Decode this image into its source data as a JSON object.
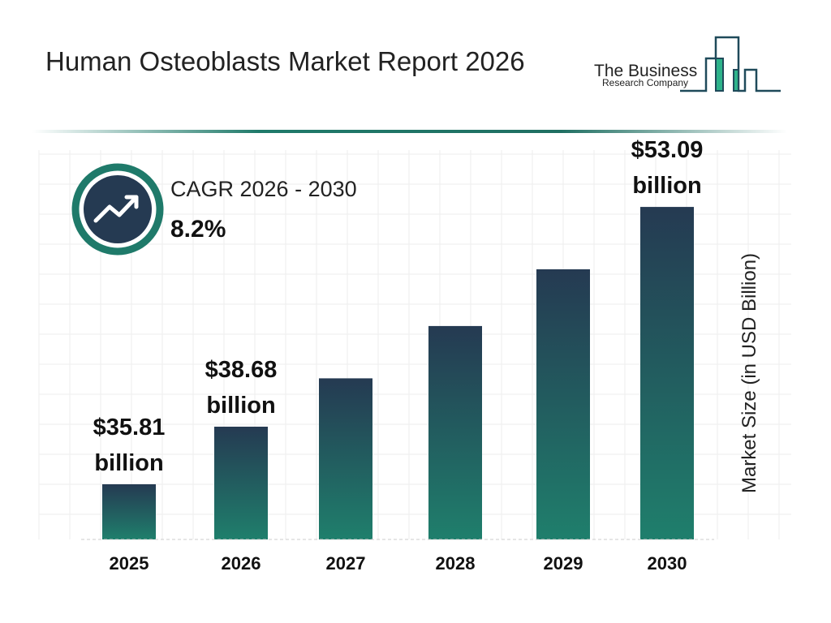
{
  "title": "Human Osteoblasts Market Report 2026",
  "logo": {
    "line1": "The Business",
    "line2": "Research Company"
  },
  "cagr": {
    "label": "CAGR 2026 - 2030",
    "value": "8.2%",
    "icon": "trending-up-icon"
  },
  "chart_data": {
    "type": "bar",
    "categories": [
      "2025",
      "2026",
      "2027",
      "2028",
      "2029",
      "2030"
    ],
    "values": [
      35.81,
      38.68,
      41.85,
      45.28,
      49.0,
      53.09
    ],
    "data_labels": [
      {
        "index": 0,
        "line1": "$35.81",
        "line2": "billion"
      },
      {
        "index": 1,
        "line1": "$38.68",
        "line2": "billion"
      },
      {
        "index": 5,
        "line1": "$53.09",
        "line2": "billion"
      }
    ],
    "ylabel": "Market Size (in USD Billion)",
    "xlabel": "",
    "grid": true,
    "colors": {
      "bar_top": "#253a52",
      "bar_bottom": "#1f7f6c",
      "accent": "#1f7a6a"
    }
  }
}
